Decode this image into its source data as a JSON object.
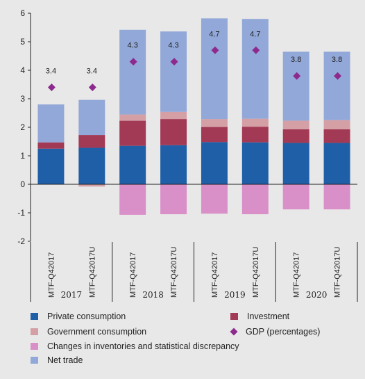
{
  "chart_data": {
    "type": "bar",
    "stacked": true,
    "ylim": [
      -2,
      6
    ],
    "yticks": [
      -2,
      -1,
      0,
      1,
      2,
      3,
      4,
      5,
      6
    ],
    "categories": [
      "MTF-Q42017",
      "MTF-Q42017U",
      "MTF-Q42017",
      "MTF-Q42017U",
      "MTF-Q42017",
      "MTF-Q42017U",
      "MTF-Q42017",
      "MTF-Q42017U"
    ],
    "groups": [
      {
        "label": "2017",
        "span": 2
      },
      {
        "label": "2018",
        "span": 2
      },
      {
        "label": "2019",
        "span": 2
      },
      {
        "label": "2020",
        "span": 2
      }
    ],
    "series": [
      {
        "name": "Private consumption",
        "color": "#1f5fa8",
        "values": [
          1.25,
          1.28,
          1.35,
          1.37,
          1.48,
          1.47,
          1.45,
          1.45
        ]
      },
      {
        "name": "Investment",
        "color": "#a33a55",
        "values": [
          0.22,
          0.45,
          0.88,
          0.92,
          0.53,
          0.55,
          0.48,
          0.48
        ]
      },
      {
        "name": "Government consumption",
        "color": "#d4a0a6",
        "values": [
          0.0,
          -0.08,
          0.22,
          0.25,
          0.28,
          0.28,
          0.3,
          0.32
        ]
      },
      {
        "name": "Changes in inventories and statistical discrepancy",
        "color": "#d98fc8",
        "values": [
          0.0,
          0.0,
          -1.07,
          -1.05,
          -1.03,
          -1.05,
          -0.88,
          -0.88
        ]
      },
      {
        "name": "Net trade",
        "color": "#92a8d8",
        "values": [
          1.33,
          1.23,
          2.97,
          2.82,
          3.53,
          3.5,
          2.42,
          2.4
        ]
      }
    ],
    "gdp": {
      "name": "GDP (percentages)",
      "color": "#8e2a8e",
      "values": [
        3.4,
        3.4,
        4.3,
        4.3,
        4.7,
        4.7,
        3.8,
        3.8
      ],
      "labels": [
        "3.4",
        "3.4",
        "4.3",
        "4.3",
        "4.7",
        "4.7",
        "3.8",
        "3.8"
      ]
    },
    "legend": [
      {
        "key": "pc",
        "label": "Private consumption"
      },
      {
        "key": "inv",
        "label": "Investment"
      },
      {
        "key": "gc",
        "label": "Government consumption"
      },
      {
        "key": "gdp",
        "label": "GDP (percentages)"
      },
      {
        "key": "ci",
        "label": "Changes in inventories and statistical discrepancy"
      },
      {
        "key": "nt",
        "label": "Net trade"
      }
    ]
  }
}
